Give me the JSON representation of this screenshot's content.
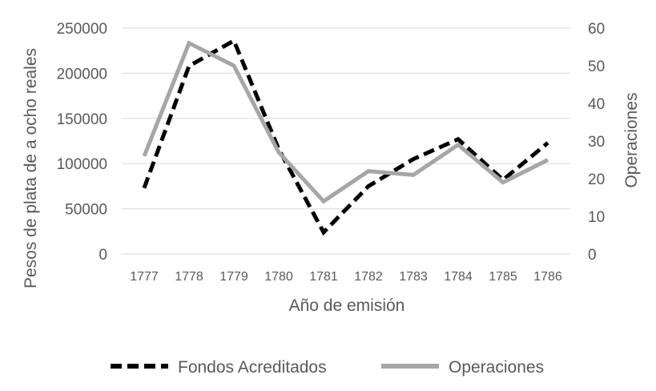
{
  "chart_data": {
    "type": "line",
    "title": "",
    "xlabel": "Año de emisión",
    "ylabel_left": "Pesos de plata de a ocho reales",
    "ylabel_right": "Operaciones",
    "categories": [
      "1777",
      "1778",
      "1779",
      "1780",
      "1781",
      "1782",
      "1783",
      "1784",
      "1785",
      "1786"
    ],
    "ylim_left": [
      0,
      250000
    ],
    "yticks_left": [
      "0",
      "50000",
      "100000",
      "150000",
      "200000",
      "250000"
    ],
    "ylim_right": [
      0,
      60
    ],
    "yticks_right": [
      "0",
      "10",
      "20",
      "30",
      "40",
      "50",
      "60"
    ],
    "grid": true,
    "legend_position": "bottom",
    "series": [
      {
        "name": "Fondos Acreditados",
        "axis": "left",
        "style": "dashed",
        "color": "#000000",
        "values": [
          73000,
          208000,
          236000,
          116000,
          24000,
          75000,
          105000,
          127000,
          82000,
          123000
        ]
      },
      {
        "name": "Operaciones",
        "axis": "right",
        "style": "solid",
        "color": "#a6a6a6",
        "values": [
          26,
          56,
          50,
          27,
          14,
          22,
          21,
          29,
          19,
          25
        ]
      }
    ]
  }
}
